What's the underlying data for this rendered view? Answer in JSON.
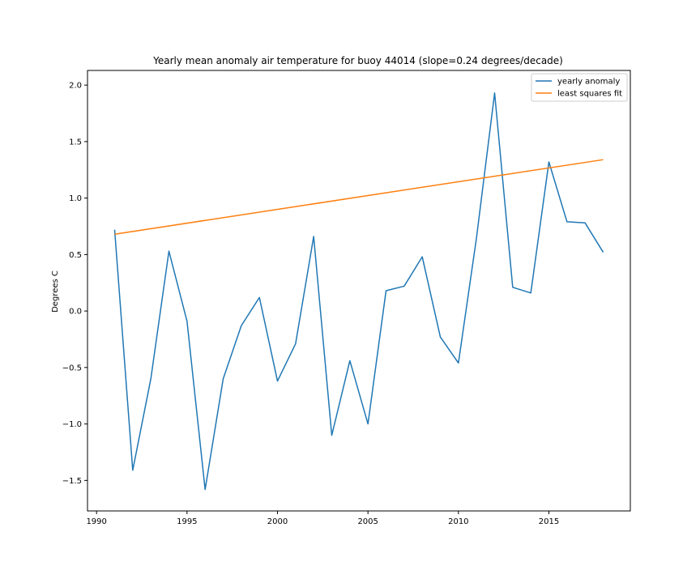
{
  "chart_data": {
    "type": "line",
    "title": "Yearly mean anomaly air temperature for buoy 44014 (slope=0.24 degrees/decade)",
    "xlabel": "",
    "ylabel": "Degrees C",
    "xlim": [
      1989.5,
      2019.5
    ],
    "ylim": [
      -1.77,
      2.13
    ],
    "x_ticks": [
      1990,
      1995,
      2000,
      2005,
      2010,
      2015
    ],
    "x_tick_labels": [
      "1990",
      "1995",
      "2000",
      "2005",
      "2010",
      "2015"
    ],
    "y_ticks": [
      -1.5,
      -1.0,
      -0.5,
      0.0,
      0.5,
      1.0,
      1.5,
      2.0
    ],
    "y_tick_labels": [
      "−1.5",
      "−1.0",
      "−0.5",
      "0.0",
      "0.5",
      "1.0",
      "1.5",
      "2.0"
    ],
    "grid": false,
    "legend_position": "top-right",
    "series": [
      {
        "name": "yearly anomaly",
        "color": "#1f77b4",
        "x": [
          1991,
          1992,
          1993,
          1994,
          1995,
          1996,
          1997,
          1998,
          1999,
          2000,
          2001,
          2002,
          2003,
          2004,
          2005,
          2006,
          2007,
          2008,
          2009,
          2010,
          2011,
          2012,
          2013,
          2014,
          2015,
          2016,
          2017,
          2018
        ],
        "y": [
          0.72,
          -1.41,
          -0.6,
          0.53,
          -0.09,
          -1.58,
          -0.6,
          -0.13,
          0.12,
          -0.62,
          -0.29,
          0.66,
          -1.1,
          -0.44,
          -1.0,
          0.18,
          0.22,
          0.48,
          -0.23,
          -0.46,
          0.65,
          1.93,
          0.21,
          0.16,
          1.32,
          0.79,
          0.78,
          0.52
        ]
      },
      {
        "name": "least squares fit",
        "color": "#ff7f0e",
        "x": [
          1991,
          2018
        ],
        "y": [
          0.68,
          1.34
        ]
      }
    ]
  }
}
